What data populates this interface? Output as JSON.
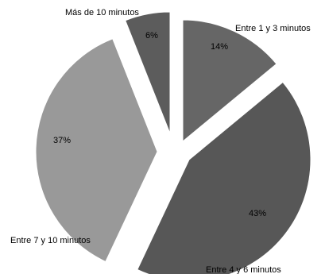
{
  "chart_data": {
    "type": "pie",
    "exploded": true,
    "start_angle_deg": 0,
    "direction": "clockwise",
    "slices": [
      {
        "label": "Entre 1 y 3 minutos",
        "value": 14,
        "value_label": "14%",
        "color": "#666666"
      },
      {
        "label": "Entre 4 y 6 minutos",
        "value": 43,
        "value_label": "43%",
        "color": "#575757"
      },
      {
        "label": "Entre 7 y 10 minutos",
        "value": 37,
        "value_label": "37%",
        "color": "#999999"
      },
      {
        "label": "Más de 10 minutos",
        "value": 6,
        "value_label": "6%",
        "color": "#5c5c5c"
      }
    ]
  }
}
